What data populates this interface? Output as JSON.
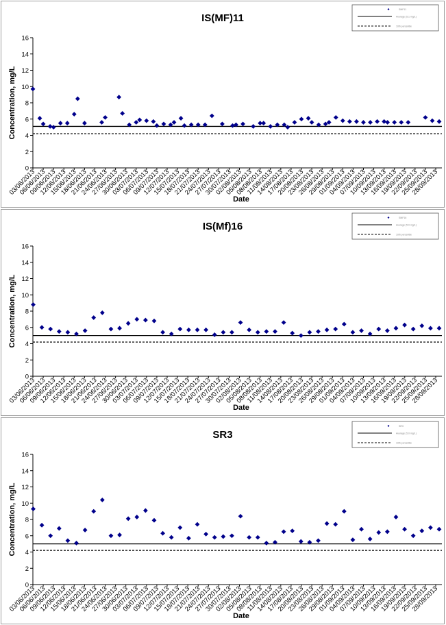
{
  "charts": [
    {
      "title": "IS(MF)11",
      "xlabel": "Date",
      "ylabel": "Concentration, mg/L",
      "legend": [
        "SMF11",
        "Average (5.1 mg/L)",
        "10th percentile"
      ]
    },
    {
      "title": "IS(Mf)16",
      "xlabel": "Date",
      "ylabel": "Concentration, mg/L",
      "legend": [
        "SMF16",
        "Average (5.0 mg/L)",
        "10th percentile"
      ]
    },
    {
      "title": "SR3",
      "xlabel": "Date",
      "ylabel": "Concentration, mg/L",
      "legend": [
        "SR3",
        "Average (5.0 mg/L)",
        "10th percentile"
      ]
    }
  ],
  "chart_data": [
    {
      "type": "scatter",
      "title": "IS(MF)11",
      "xlabel": "Date",
      "ylabel": "Concentration, mg/L",
      "ylim": [
        0,
        16
      ],
      "yticks": [
        0,
        2,
        4,
        6,
        8,
        10,
        12,
        14,
        16
      ],
      "x_tick_labels": [
        "03/06/2013",
        "06/06/2013",
        "09/06/2013",
        "12/06/2013",
        "15/06/2013",
        "18/06/2013",
        "21/06/2013",
        "24/06/2013",
        "27/06/2013",
        "30/06/2013",
        "03/07/2013",
        "06/07/2013",
        "09/07/2013",
        "12/07/2013",
        "15/07/2013",
        "18/07/2013",
        "21/07/2013",
        "24/07/2013",
        "27/07/2013",
        "30/07/2013",
        "02/08/2013",
        "05/08/2013",
        "08/08/2013",
        "11/08/2013",
        "14/08/2013",
        "17/08/2013",
        "20/08/2013",
        "23/08/2013",
        "26/08/2013",
        "29/08/2013",
        "01/09/2013",
        "04/09/2013",
        "07/09/2013",
        "10/09/2013",
        "13/09/2013",
        "16/09/2013",
        "19/09/2013",
        "22/09/2013",
        "25/09/2013",
        "28/09/2013"
      ],
      "series": [
        {
          "x": [
            "03/06/2013",
            "05/06/2013",
            "06/06/2013",
            "08/06/2013",
            "09/06/2013",
            "11/06/2013",
            "13/06/2013",
            "15/06/2013",
            "16/06/2013",
            "18/06/2013",
            "23/06/2013",
            "24/06/2013",
            "28/06/2013",
            "29/06/2013",
            "01/07/2013",
            "03/07/2013",
            "04/07/2013",
            "06/07/2013",
            "08/07/2013",
            "09/07/2013",
            "11/07/2013",
            "13/07/2013",
            "14/07/2013",
            "16/07/2013",
            "17/07/2013",
            "19/07/2013",
            "21/07/2013",
            "23/07/2013",
            "25/07/2013",
            "28/07/2013",
            "31/07/2013",
            "01/08/2013",
            "03/08/2013",
            "06/08/2013",
            "08/08/2013",
            "09/08/2013",
            "11/08/2013",
            "13/08/2013",
            "15/08/2013",
            "16/08/2013",
            "18/08/2013",
            "20/08/2013",
            "22/08/2013",
            "23/08/2013",
            "25/08/2013",
            "27/08/2013",
            "28/08/2013",
            "30/08/2013",
            "01/09/2013",
            "03/09/2013",
            "05/09/2013",
            "07/09/2013",
            "09/09/2013",
            "11/09/2013",
            "13/09/2013",
            "14/09/2013",
            "16/09/2013",
            "18/09/2013",
            "20/09/2013",
            "25/09/2013",
            "27/09/2013",
            "29/09/2013"
          ],
          "values": [
            9.7,
            6.1,
            5.4,
            5.1,
            5.0,
            5.5,
            5.5,
            6.6,
            8.5,
            5.5,
            5.6,
            6.2,
            8.7,
            6.7,
            5.3,
            5.6,
            5.9,
            5.8,
            5.7,
            5.2,
            5.4,
            5.3,
            5.6,
            6.1,
            5.2,
            5.3,
            5.3,
            5.3,
            6.4,
            5.4,
            5.2,
            5.3,
            5.4,
            5.1,
            5.5,
            5.5,
            5.1,
            5.3,
            5.3,
            5.0,
            5.6,
            6.0,
            6.1,
            5.6,
            5.3,
            5.4,
            5.6,
            6.2,
            5.8,
            5.7,
            5.7,
            5.6,
            5.6,
            5.7,
            5.7,
            5.6,
            5.6,
            5.6,
            5.6,
            6.2,
            5.8,
            5.7
          ]
        }
      ],
      "reference_lines": [
        {
          "value": 5.1,
          "style": "solid"
        },
        {
          "value": 4.2,
          "style": "dashed"
        }
      ],
      "legend_position": "top-right",
      "grid": false
    },
    {
      "type": "scatter",
      "title": "IS(Mf)16",
      "xlabel": "Date",
      "ylabel": "Concentration, mg/L",
      "ylim": [
        0,
        16
      ],
      "yticks": [
        0,
        2,
        4,
        6,
        8,
        10,
        12,
        14,
        16
      ],
      "x_tick_labels": [
        "03/06/2013",
        "06/06/2013",
        "09/06/2013",
        "12/06/2013",
        "15/06/2013",
        "18/06/2013",
        "21/06/2013",
        "24/06/2013",
        "27/06/2013",
        "30/06/2013",
        "03/07/2013",
        "06/07/2013",
        "09/07/2013",
        "12/07/2013",
        "15/07/2013",
        "18/07/2013",
        "21/07/2013",
        "24/07/2013",
        "27/07/2013",
        "30/07/2013",
        "02/08/2013",
        "05/08/2013",
        "08/08/2013",
        "11/08/2013",
        "14/08/2013",
        "17/08/2013",
        "20/08/2013",
        "23/08/2013",
        "26/08/2013",
        "29/08/2013",
        "01/09/2013",
        "04/09/2013",
        "07/09/2013",
        "10/09/2013",
        "13/09/2013",
        "16/09/2013",
        "19/09/2013",
        "22/09/2013",
        "25/09/2013",
        "28/09/2013"
      ],
      "series": [
        {
          "values": [
            8.8,
            6.0,
            5.8,
            5.5,
            5.4,
            5.2,
            5.6,
            7.2,
            7.8,
            5.8,
            5.9,
            6.5,
            7.0,
            6.9,
            6.8,
            5.4,
            5.2,
            5.8,
            5.7,
            5.7,
            5.7,
            5.1,
            5.4,
            5.4,
            6.6,
            5.7,
            5.4,
            5.5,
            5.5,
            6.6,
            5.3,
            5.0,
            5.4,
            5.5,
            5.7,
            5.8,
            6.4,
            5.4,
            5.6,
            5.2,
            5.8,
            5.6,
            5.9,
            6.3,
            5.8,
            6.2,
            5.9,
            5.9
          ]
        }
      ],
      "reference_lines": [
        {
          "value": 5.0,
          "style": "solid"
        },
        {
          "value": 4.2,
          "style": "dashed"
        }
      ],
      "legend_position": "top-right",
      "grid": false
    },
    {
      "type": "scatter",
      "title": "SR3",
      "xlabel": "Date",
      "ylabel": "Concentration, mg/L",
      "ylim": [
        0,
        16
      ],
      "yticks": [
        0,
        2,
        4,
        6,
        8,
        10,
        12,
        14,
        16
      ],
      "x_tick_labels": [
        "03/06/2013",
        "06/06/2013",
        "09/06/2013",
        "12/06/2013",
        "15/06/2013",
        "18/06/2013",
        "21/06/2013",
        "24/06/2013",
        "27/06/2013",
        "30/06/2013",
        "03/07/2013",
        "06/07/2013",
        "09/07/2013",
        "12/07/2013",
        "15/07/2013",
        "18/07/2013",
        "21/07/2013",
        "24/07/2013",
        "27/07/2013",
        "30/07/2013",
        "02/08/2013",
        "05/08/2013",
        "08/08/2013",
        "11/08/2013",
        "14/08/2013",
        "17/08/2013",
        "20/08/2013",
        "23/08/2013",
        "26/08/2013",
        "29/08/2013",
        "01/09/2013",
        "04/09/2013",
        "07/09/2013",
        "10/09/2013",
        "13/09/2013",
        "16/09/2013",
        "19/09/2013",
        "22/09/2013",
        "25/09/2013",
        "28/09/2013"
      ],
      "series": [
        {
          "values": [
            9.3,
            7.3,
            6.0,
            6.9,
            5.4,
            5.1,
            6.7,
            9.0,
            10.4,
            6.0,
            6.1,
            8.1,
            8.3,
            9.1,
            7.9,
            6.3,
            5.8,
            7.0,
            5.7,
            7.4,
            6.2,
            5.8,
            5.9,
            6.0,
            8.4,
            5.8,
            5.8,
            5.1,
            5.2,
            6.5,
            6.6,
            5.3,
            5.2,
            5.4,
            7.5,
            7.4,
            9.0,
            5.5,
            6.8,
            5.6,
            6.4,
            6.5,
            8.3,
            6.8,
            6.0,
            6.6,
            7.0,
            6.8
          ]
        }
      ],
      "reference_lines": [
        {
          "value": 5.0,
          "style": "solid"
        },
        {
          "value": 4.2,
          "style": "dashed"
        }
      ],
      "legend_position": "top-right",
      "grid": false
    }
  ]
}
